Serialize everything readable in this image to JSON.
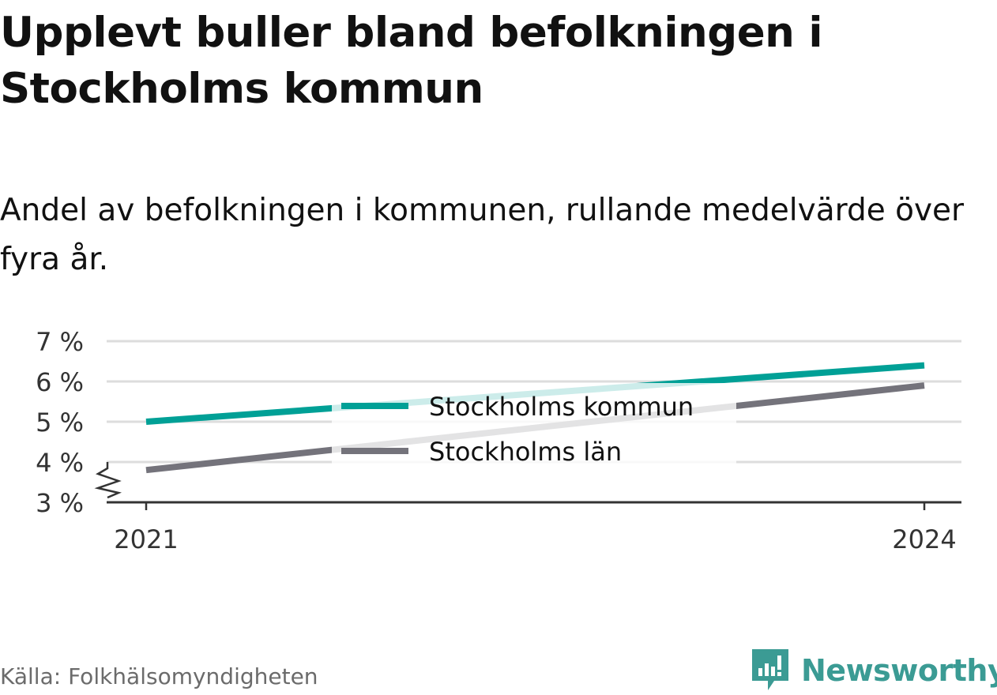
{
  "title": "Upplevt buller bland befolkningen i Stockholms kommun",
  "subtitle": "Andel av befolkningen i kommunen, rullande medelvärde över fyra år.",
  "source": "Källa: Folkhälsomyndigheten",
  "brand": "Newsworthy",
  "colors": {
    "series1": "#00a096",
    "series2": "#74737b",
    "grid": "#dddddd",
    "axis": "#333333",
    "brand": "#3b9b94"
  },
  "chart_data": {
    "type": "line",
    "x": [
      2021,
      2024
    ],
    "x_tick_labels": [
      "2021",
      "2024"
    ],
    "y_ticks": [
      3,
      4,
      5,
      6,
      7
    ],
    "y_tick_labels": [
      "3 %",
      "4 %",
      "5 %",
      "6 %",
      "7 %"
    ],
    "ylim": [
      3,
      7
    ],
    "y_axis_break": true,
    "grid": true,
    "legend_position": "center",
    "series": [
      {
        "name": "Stockholms kommun",
        "values": [
          5.0,
          6.4
        ],
        "color": "#00a096"
      },
      {
        "name": "Stockholms län",
        "values": [
          3.8,
          5.9
        ],
        "color": "#74737b"
      }
    ]
  }
}
